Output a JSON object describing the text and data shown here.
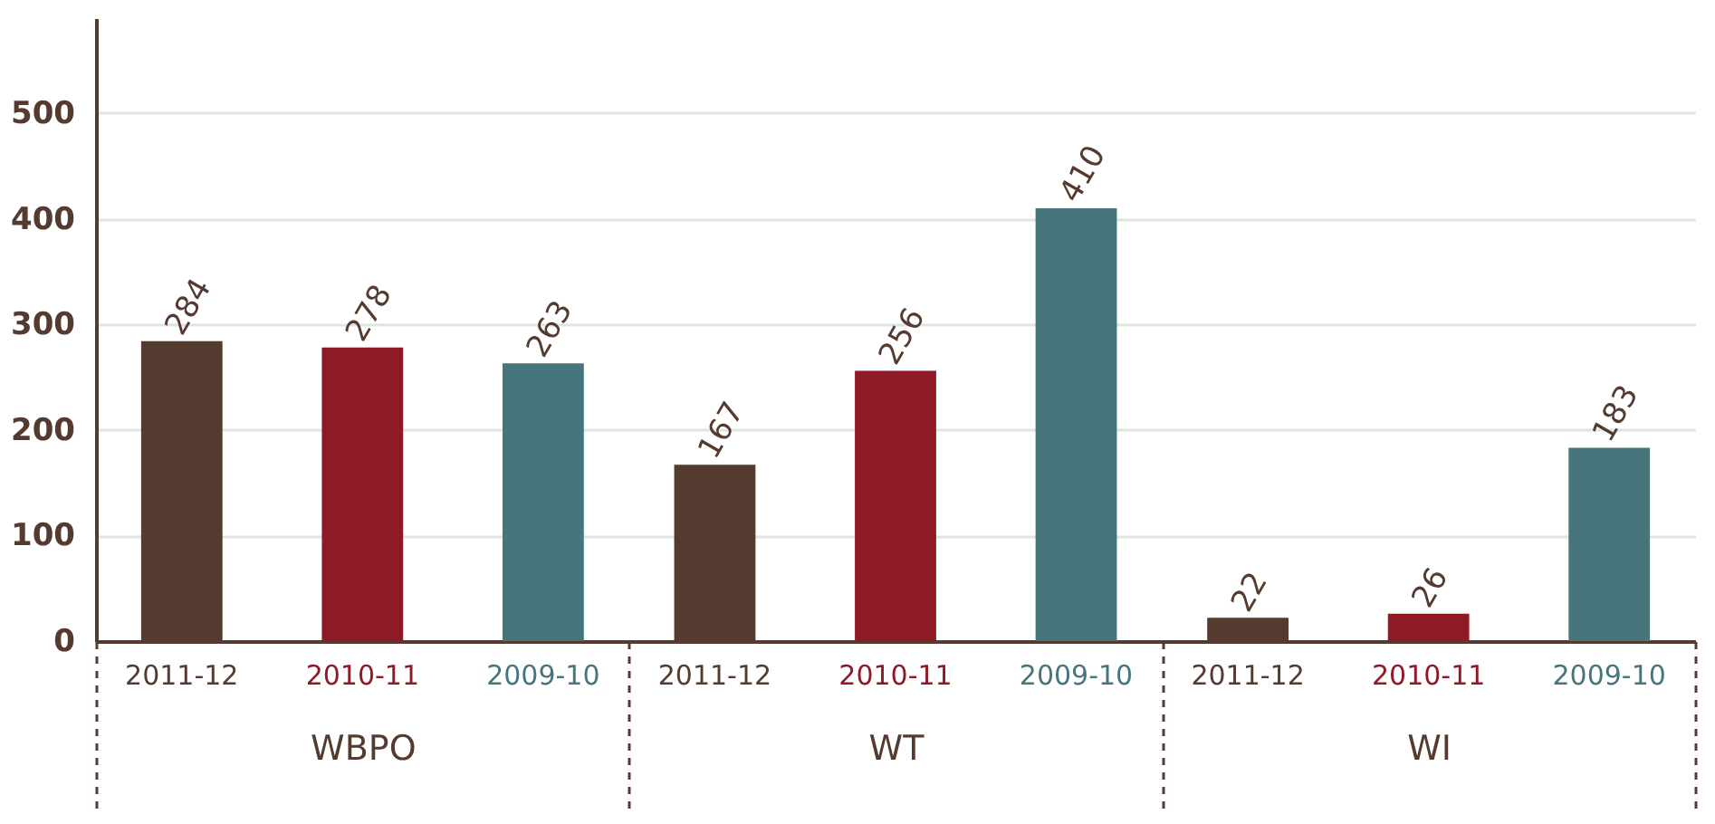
{
  "chart_data": {
    "type": "bar",
    "categories": [
      "WBPO",
      "WT",
      "WI"
    ],
    "series": [
      {
        "name": "2011-12",
        "color": "#553a30",
        "values": [
          284,
          167,
          22
        ]
      },
      {
        "name": "2010-11",
        "color": "#8e1a25",
        "values": [
          278,
          256,
          26
        ]
      },
      {
        "name": "2009-10",
        "color": "#46767b",
        "values": [
          263,
          410,
          183
        ]
      }
    ],
    "ylim": [
      0,
      590
    ],
    "yticks": [
      0,
      100,
      200,
      300,
      400,
      500
    ],
    "grid": "y",
    "legend": false,
    "data_labels": true
  }
}
